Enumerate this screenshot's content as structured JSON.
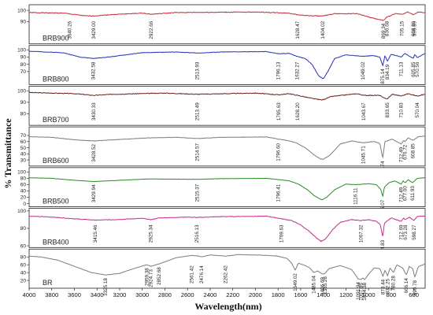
{
  "chart_data": {
    "type": "line",
    "xlabel": "Wavelength(nm)",
    "ylabel": "% Transmittance",
    "xlim": [
      4000,
      500
    ],
    "x_reversed": true,
    "x_ticks": [
      4000,
      3800,
      3600,
      3400,
      3200,
      3000,
      2800,
      2600,
      2400,
      2200,
      2000,
      1800,
      1600,
      1400,
      1200,
      1000,
      800,
      600
    ],
    "grid": false,
    "legend": "none",
    "panels": [
      {
        "name": "BRB900",
        "color": "#c8283c",
        "yrange": [
          70,
          105
        ],
        "yticks": [
          90,
          100
        ],
        "peaks": [
          "3640.26",
          "3429.00",
          "2922.66",
          "1628.47",
          "1404.02",
          "869.34",
          "836.68",
          "705.15",
          "603.86",
          "595.39"
        ],
        "baseline": [
          [
            4000,
            98
          ],
          [
            3700,
            97.5
          ],
          [
            3500,
            95
          ],
          [
            3430,
            95
          ],
          [
            3300,
            96
          ],
          [
            3000,
            97.5
          ],
          [
            2922,
            96.5
          ],
          [
            2700,
            98
          ],
          [
            2000,
            98.5
          ],
          [
            1700,
            97.5
          ],
          [
            1630,
            96
          ],
          [
            1500,
            95
          ],
          [
            1400,
            95
          ],
          [
            1300,
            97
          ],
          [
            1100,
            97
          ],
          [
            1000,
            94
          ],
          [
            920,
            92
          ],
          [
            869,
            91
          ],
          [
            836,
            94
          ],
          [
            760,
            97
          ],
          [
            705,
            96.5
          ],
          [
            650,
            98.5
          ],
          [
            604,
            96
          ],
          [
            560,
            98.5
          ],
          [
            500,
            98
          ]
        ]
      },
      {
        "name": "BRB800",
        "color": "#2530b8",
        "yrange": [
          52,
          106
        ],
        "yticks": [
          70,
          80,
          90,
          100
        ],
        "peaks": [
          "3432.58",
          "2513.93",
          "1796.13",
          "1632.27",
          "1049.02",
          "875.14",
          "834.19",
          "711.13",
          "605.85",
          "570.56"
        ],
        "baseline": [
          [
            4000,
            98
          ],
          [
            3700,
            96
          ],
          [
            3550,
            90
          ],
          [
            3433,
            88
          ],
          [
            3300,
            90
          ],
          [
            3000,
            96
          ],
          [
            2700,
            97
          ],
          [
            2514,
            95.5
          ],
          [
            2300,
            97
          ],
          [
            1900,
            97.5
          ],
          [
            1796,
            94.5
          ],
          [
            1700,
            95
          ],
          [
            1632,
            91
          ],
          [
            1560,
            88
          ],
          [
            1500,
            80
          ],
          [
            1440,
            64
          ],
          [
            1400,
            60
          ],
          [
            1360,
            70
          ],
          [
            1300,
            88
          ],
          [
            1200,
            93
          ],
          [
            1049,
            91
          ],
          [
            960,
            92
          ],
          [
            900,
            90
          ],
          [
            875,
            78
          ],
          [
            855,
            92
          ],
          [
            834,
            84
          ],
          [
            800,
            94
          ],
          [
            711,
            90
          ],
          [
            680,
            95
          ],
          [
            606,
            88
          ],
          [
            590,
            94
          ],
          [
            571,
            89
          ],
          [
            500,
            95
          ]
        ]
      },
      {
        "name": "BRB700",
        "color": "#6e1e1e",
        "yrange": [
          70,
          104
        ],
        "yticks": [
          80,
          90,
          100
        ],
        "peaks": [
          "3430.33",
          "2513.49",
          "1795.63",
          "1628.20",
          "1043.67",
          "833.65",
          "710.83",
          "570.04"
        ],
        "baseline": [
          [
            4000,
            98.5
          ],
          [
            3600,
            97.5
          ],
          [
            3430,
            96
          ],
          [
            3250,
            97
          ],
          [
            2800,
            98
          ],
          [
            2514,
            97
          ],
          [
            2000,
            98
          ],
          [
            1796,
            96.5
          ],
          [
            1700,
            97.5
          ],
          [
            1628,
            96
          ],
          [
            1480,
            93
          ],
          [
            1410,
            92
          ],
          [
            1330,
            95
          ],
          [
            1100,
            97.5
          ],
          [
            1044,
            96
          ],
          [
            900,
            96
          ],
          [
            870,
            94
          ],
          [
            834,
            93
          ],
          [
            790,
            97
          ],
          [
            711,
            95.5
          ],
          [
            650,
            97.5
          ],
          [
            570,
            95.5
          ],
          [
            500,
            97
          ]
        ]
      },
      {
        "name": "BRB600",
        "color": "#7c7c7c",
        "yrange": [
          20,
          84
        ],
        "yticks": [
          30,
          40,
          50,
          60,
          70
        ],
        "peaks": [
          "3428.52",
          "2514.57",
          "1796.60",
          "1045.71",
          "874.74",
          "712.49",
          "676.72",
          "608.85"
        ],
        "baseline": [
          [
            4000,
            68
          ],
          [
            3800,
            67
          ],
          [
            3600,
            63
          ],
          [
            3430,
            61
          ],
          [
            3250,
            63
          ],
          [
            2950,
            66
          ],
          [
            2700,
            67
          ],
          [
            2514,
            65
          ],
          [
            2300,
            67
          ],
          [
            1900,
            67.5
          ],
          [
            1796,
            64
          ],
          [
            1720,
            62
          ],
          [
            1640,
            58
          ],
          [
            1560,
            50
          ],
          [
            1480,
            38
          ],
          [
            1430,
            32
          ],
          [
            1400,
            31
          ],
          [
            1340,
            38
          ],
          [
            1250,
            56
          ],
          [
            1150,
            61
          ],
          [
            1046,
            58
          ],
          [
            950,
            60
          ],
          [
            900,
            57
          ],
          [
            875,
            33
          ],
          [
            855,
            60
          ],
          [
            790,
            64
          ],
          [
            712,
            56
          ],
          [
            690,
            62
          ],
          [
            677,
            60
          ],
          [
            650,
            66
          ],
          [
            609,
            62
          ],
          [
            560,
            68
          ],
          [
            500,
            69
          ]
        ]
      },
      {
        "name": "BRB500",
        "color": "#2a8a22",
        "yrange": [
          -10,
          114
        ],
        "yticks": [
          0,
          20,
          40,
          60,
          80,
          100
        ],
        "peaks": [
          "3429.94",
          "2515.37",
          "1796.41",
          "1116.11",
          "875.07",
          "712.49",
          "677.00",
          "611.93"
        ],
        "baseline": [
          [
            4000,
            82
          ],
          [
            3800,
            80
          ],
          [
            3600,
            74
          ],
          [
            3430,
            70
          ],
          [
            3250,
            73
          ],
          [
            2950,
            78
          ],
          [
            2515,
            77
          ],
          [
            2300,
            79
          ],
          [
            1900,
            80
          ],
          [
            1796,
            76
          ],
          [
            1700,
            72
          ],
          [
            1620,
            62
          ],
          [
            1540,
            44
          ],
          [
            1480,
            25
          ],
          [
            1430,
            15
          ],
          [
            1410,
            12
          ],
          [
            1370,
            20
          ],
          [
            1300,
            44
          ],
          [
            1200,
            62
          ],
          [
            1116,
            60
          ],
          [
            1000,
            63
          ],
          [
            930,
            60
          ],
          [
            890,
            44
          ],
          [
            875,
            22
          ],
          [
            860,
            52
          ],
          [
            820,
            66
          ],
          [
            770,
            72
          ],
          [
            712,
            62
          ],
          [
            695,
            72
          ],
          [
            677,
            66
          ],
          [
            650,
            76
          ],
          [
            612,
            66
          ],
          [
            570,
            80
          ],
          [
            500,
            82
          ]
        ]
      },
      {
        "name": "BRB400",
        "color": "#c82a8c",
        "yrange": [
          58,
          103
        ],
        "yticks": [
          60,
          80,
          100
        ],
        "peaks": [
          "3415.46",
          "2925.34",
          "2516.13",
          "1769.63",
          "1067.32",
          "874.83",
          "712.69",
          "673.28",
          "598.27"
        ],
        "baseline": [
          [
            4000,
            94
          ],
          [
            3800,
            93
          ],
          [
            3600,
            91
          ],
          [
            3415,
            89.5
          ],
          [
            3250,
            90
          ],
          [
            3000,
            91.5
          ],
          [
            2925,
            90
          ],
          [
            2850,
            92
          ],
          [
            2600,
            93
          ],
          [
            2516,
            92.5
          ],
          [
            2300,
            93.5
          ],
          [
            1900,
            94
          ],
          [
            1770,
            91
          ],
          [
            1680,
            89
          ],
          [
            1600,
            84
          ],
          [
            1520,
            76
          ],
          [
            1460,
            69
          ],
          [
            1420,
            65
          ],
          [
            1380,
            68
          ],
          [
            1320,
            78
          ],
          [
            1250,
            87
          ],
          [
            1150,
            90
          ],
          [
            1067,
            89
          ],
          [
            1000,
            90
          ],
          [
            930,
            88
          ],
          [
            895,
            84
          ],
          [
            875,
            70
          ],
          [
            860,
            86
          ],
          [
            800,
            92
          ],
          [
            713,
            88
          ],
          [
            690,
            92
          ],
          [
            673,
            90
          ],
          [
            640,
            93
          ],
          [
            598,
            89
          ],
          [
            570,
            94
          ],
          [
            500,
            94
          ]
        ]
      },
      {
        "name": "BR",
        "color": "#7c7c7c",
        "yrange": [
          0,
          100
        ],
        "yticks": [
          20,
          40,
          60,
          80
        ],
        "peaks": [
          "3325.18",
          "2959.38",
          "2924.73",
          "2852.68",
          "2561.42",
          "2476.14",
          "2262.42",
          "1649.02",
          "1485.04",
          "1406.69",
          "1385.28",
          "1091.94",
          "1067.96",
          "1034.38",
          "873.44",
          "832.25",
          "780.28",
          "666.14",
          "590.78"
        ],
        "baseline": [
          [
            4000,
            82
          ],
          [
            3900,
            80
          ],
          [
            3750,
            72
          ],
          [
            3600,
            56
          ],
          [
            3450,
            40
          ],
          [
            3325,
            34
          ],
          [
            3200,
            38
          ],
          [
            3100,
            48
          ],
          [
            2960,
            60
          ],
          [
            2924,
            56
          ],
          [
            2852,
            62
          ],
          [
            2700,
            78
          ],
          [
            2561,
            84
          ],
          [
            2500,
            82
          ],
          [
            2476,
            80
          ],
          [
            2400,
            85
          ],
          [
            2262,
            82
          ],
          [
            2150,
            86
          ],
          [
            1900,
            84
          ],
          [
            1800,
            82
          ],
          [
            1720,
            76
          ],
          [
            1680,
            64
          ],
          [
            1649,
            46
          ],
          [
            1620,
            64
          ],
          [
            1560,
            58
          ],
          [
            1520,
            52
          ],
          [
            1485,
            40
          ],
          [
            1450,
            44
          ],
          [
            1407,
            36
          ],
          [
            1385,
            38
          ],
          [
            1350,
            50
          ],
          [
            1250,
            58
          ],
          [
            1150,
            48
          ],
          [
            1092,
            24
          ],
          [
            1068,
            22
          ],
          [
            1050,
            26
          ],
          [
            1034,
            22
          ],
          [
            1000,
            36
          ],
          [
            950,
            52
          ],
          [
            900,
            50
          ],
          [
            873,
            30
          ],
          [
            855,
            46
          ],
          [
            832,
            32
          ],
          [
            810,
            52
          ],
          [
            780,
            40
          ],
          [
            750,
            60
          ],
          [
            700,
            52
          ],
          [
            666,
            34
          ],
          [
            640,
            56
          ],
          [
            610,
            50
          ],
          [
            591,
            28
          ],
          [
            560,
            55
          ],
          [
            500,
            62
          ]
        ]
      }
    ]
  }
}
